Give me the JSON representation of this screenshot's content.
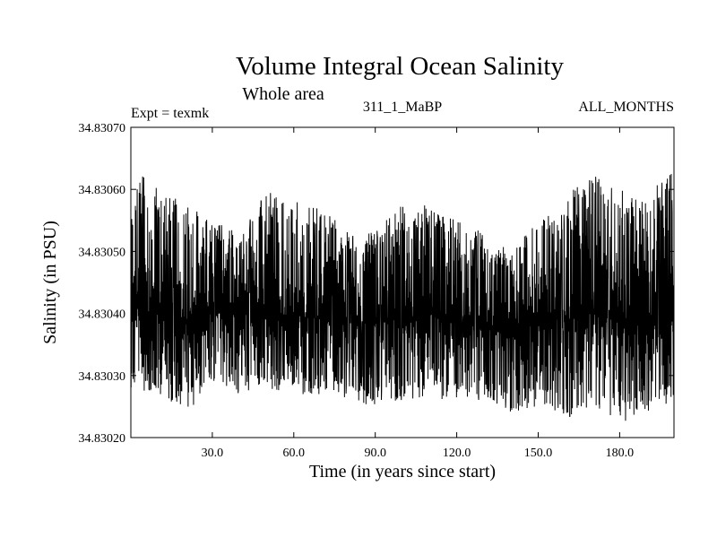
{
  "header": {
    "title": "Volume Integral Ocean Salinity",
    "subtitle": "Whole area",
    "expt": "Expt = texmk",
    "run_id": "311_1_MaBP",
    "months": "ALL_MONTHS"
  },
  "chart_data": {
    "type": "line",
    "title": "Volume Integral Ocean Salinity",
    "subtitle": "Whole area",
    "xlabel": "Time (in years since start)",
    "ylabel": "Salinity (in PSU)",
    "xlim": [
      0,
      200
    ],
    "ylim": [
      34.8302,
      34.8307
    ],
    "xticks": [
      30,
      60,
      90,
      120,
      150,
      180
    ],
    "xtick_labels": [
      "30.0",
      "60.0",
      "90.0",
      "120.0",
      "150.0",
      "180.0"
    ],
    "yticks": [
      34.8302,
      34.8303,
      34.8304,
      34.8305,
      34.8306,
      34.8307
    ],
    "ytick_labels": [
      "34.83020",
      "34.83030",
      "34.83040",
      "34.83050",
      "34.83060",
      "34.83070"
    ],
    "grid": false,
    "series": [
      {
        "name": "salinity",
        "color": "#000000",
        "samples_per_year": 12,
        "mean": [
          [
            0,
            34.83041
          ],
          [
            10,
            34.8304
          ],
          [
            20,
            34.83039
          ],
          [
            30,
            34.8304
          ],
          [
            40,
            34.8304
          ],
          [
            50,
            34.83039
          ],
          [
            60,
            34.8304
          ],
          [
            70,
            34.83039
          ],
          [
            80,
            34.83038
          ],
          [
            90,
            34.83039
          ],
          [
            100,
            34.83039
          ],
          [
            110,
            34.8304
          ],
          [
            120,
            34.83039
          ],
          [
            130,
            34.83038
          ],
          [
            140,
            34.83038
          ],
          [
            150,
            34.83039
          ],
          [
            160,
            34.83039
          ],
          [
            170,
            34.8304
          ],
          [
            180,
            34.83039
          ],
          [
            190,
            34.83038
          ],
          [
            200,
            34.83039
          ]
        ],
        "upper_envelope": [
          [
            0,
            34.8306
          ],
          [
            5,
            34.83064
          ],
          [
            10,
            34.8306
          ],
          [
            20,
            34.83058
          ],
          [
            30,
            34.83055
          ],
          [
            40,
            34.83053
          ],
          [
            50,
            34.8306
          ],
          [
            60,
            34.83058
          ],
          [
            70,
            34.83058
          ],
          [
            80,
            34.83053
          ],
          [
            90,
            34.83053
          ],
          [
            100,
            34.83058
          ],
          [
            110,
            34.83058
          ],
          [
            120,
            34.83055
          ],
          [
            130,
            34.83053
          ],
          [
            140,
            34.8305
          ],
          [
            150,
            34.83055
          ],
          [
            160,
            34.83058
          ],
          [
            167,
            34.83063
          ],
          [
            180,
            34.8306
          ],
          [
            190,
            34.83058
          ],
          [
            200,
            34.83065
          ]
        ],
        "lower_envelope": [
          [
            0,
            34.83028
          ],
          [
            10,
            34.83027
          ],
          [
            20,
            34.83024
          ],
          [
            30,
            34.83028
          ],
          [
            40,
            34.83027
          ],
          [
            50,
            34.83028
          ],
          [
            60,
            34.83027
          ],
          [
            70,
            34.83027
          ],
          [
            80,
            34.83026
          ],
          [
            90,
            34.83025
          ],
          [
            100,
            34.83026
          ],
          [
            110,
            34.83026
          ],
          [
            120,
            34.83026
          ],
          [
            130,
            34.83026
          ],
          [
            140,
            34.83024
          ],
          [
            150,
            34.83025
          ],
          [
            160,
            34.83023
          ],
          [
            170,
            34.83025
          ],
          [
            180,
            34.83022
          ],
          [
            190,
            34.83024
          ],
          [
            200,
            34.83026
          ]
        ]
      }
    ]
  }
}
